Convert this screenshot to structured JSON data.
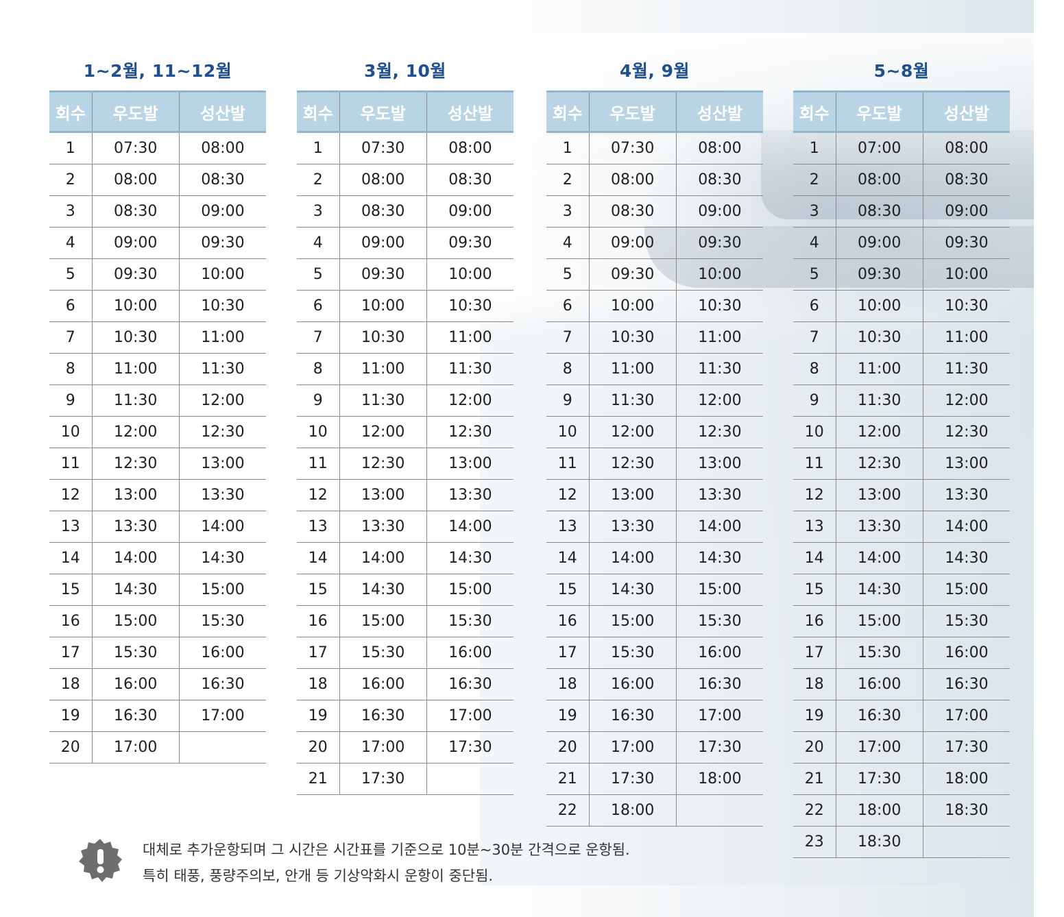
{
  "columns": [
    "회수",
    "우도발",
    "성산발"
  ],
  "schedules": [
    {
      "title": "1~2월, 11~12월",
      "rows": [
        [
          "1",
          "07:30",
          "08:00"
        ],
        [
          "2",
          "08:00",
          "08:30"
        ],
        [
          "3",
          "08:30",
          "09:00"
        ],
        [
          "4",
          "09:00",
          "09:30"
        ],
        [
          "5",
          "09:30",
          "10:00"
        ],
        [
          "6",
          "10:00",
          "10:30"
        ],
        [
          "7",
          "10:30",
          "11:00"
        ],
        [
          "8",
          "11:00",
          "11:30"
        ],
        [
          "9",
          "11:30",
          "12:00"
        ],
        [
          "10",
          "12:00",
          "12:30"
        ],
        [
          "11",
          "12:30",
          "13:00"
        ],
        [
          "12",
          "13:00",
          "13:30"
        ],
        [
          "13",
          "13:30",
          "14:00"
        ],
        [
          "14",
          "14:00",
          "14:30"
        ],
        [
          "15",
          "14:30",
          "15:00"
        ],
        [
          "16",
          "15:00",
          "15:30"
        ],
        [
          "17",
          "15:30",
          "16:00"
        ],
        [
          "18",
          "16:00",
          "16:30"
        ],
        [
          "19",
          "16:30",
          "17:00"
        ],
        [
          "20",
          "17:00",
          ""
        ]
      ]
    },
    {
      "title": "3월, 10월",
      "rows": [
        [
          "1",
          "07:30",
          "08:00"
        ],
        [
          "2",
          "08:00",
          "08:30"
        ],
        [
          "3",
          "08:30",
          "09:00"
        ],
        [
          "4",
          "09:00",
          "09:30"
        ],
        [
          "5",
          "09:30",
          "10:00"
        ],
        [
          "6",
          "10:00",
          "10:30"
        ],
        [
          "7",
          "10:30",
          "11:00"
        ],
        [
          "8",
          "11:00",
          "11:30"
        ],
        [
          "9",
          "11:30",
          "12:00"
        ],
        [
          "10",
          "12:00",
          "12:30"
        ],
        [
          "11",
          "12:30",
          "13:00"
        ],
        [
          "12",
          "13:00",
          "13:30"
        ],
        [
          "13",
          "13:30",
          "14:00"
        ],
        [
          "14",
          "14:00",
          "14:30"
        ],
        [
          "15",
          "14:30",
          "15:00"
        ],
        [
          "16",
          "15:00",
          "15:30"
        ],
        [
          "17",
          "15:30",
          "16:00"
        ],
        [
          "18",
          "16:00",
          "16:30"
        ],
        [
          "19",
          "16:30",
          "17:00"
        ],
        [
          "20",
          "17:00",
          "17:30"
        ],
        [
          "21",
          "17:30",
          ""
        ]
      ]
    },
    {
      "title": "4월, 9월",
      "rows": [
        [
          "1",
          "07:30",
          "08:00"
        ],
        [
          "2",
          "08:00",
          "08:30"
        ],
        [
          "3",
          "08:30",
          "09:00"
        ],
        [
          "4",
          "09:00",
          "09:30"
        ],
        [
          "5",
          "09:30",
          "10:00"
        ],
        [
          "6",
          "10:00",
          "10:30"
        ],
        [
          "7",
          "10:30",
          "11:00"
        ],
        [
          "8",
          "11:00",
          "11:30"
        ],
        [
          "9",
          "11:30",
          "12:00"
        ],
        [
          "10",
          "12:00",
          "12:30"
        ],
        [
          "11",
          "12:30",
          "13:00"
        ],
        [
          "12",
          "13:00",
          "13:30"
        ],
        [
          "13",
          "13:30",
          "14:00"
        ],
        [
          "14",
          "14:00",
          "14:30"
        ],
        [
          "15",
          "14:30",
          "15:00"
        ],
        [
          "16",
          "15:00",
          "15:30"
        ],
        [
          "17",
          "15:30",
          "16:00"
        ],
        [
          "18",
          "16:00",
          "16:30"
        ],
        [
          "19",
          "16:30",
          "17:00"
        ],
        [
          "20",
          "17:00",
          "17:30"
        ],
        [
          "21",
          "17:30",
          "18:00"
        ],
        [
          "22",
          "18:00",
          ""
        ]
      ]
    },
    {
      "title": "5~8월",
      "rows": [
        [
          "1",
          "07:00",
          "08:00"
        ],
        [
          "2",
          "08:00",
          "08:30"
        ],
        [
          "3",
          "08:30",
          "09:00"
        ],
        [
          "4",
          "09:00",
          "09:30"
        ],
        [
          "5",
          "09:30",
          "10:00"
        ],
        [
          "6",
          "10:00",
          "10:30"
        ],
        [
          "7",
          "10:30",
          "11:00"
        ],
        [
          "8",
          "11:00",
          "11:30"
        ],
        [
          "9",
          "11:30",
          "12:00"
        ],
        [
          "10",
          "12:00",
          "12:30"
        ],
        [
          "11",
          "12:30",
          "13:00"
        ],
        [
          "12",
          "13:00",
          "13:30"
        ],
        [
          "13",
          "13:30",
          "14:00"
        ],
        [
          "14",
          "14:00",
          "14:30"
        ],
        [
          "15",
          "14:30",
          "15:00"
        ],
        [
          "16",
          "15:00",
          "15:30"
        ],
        [
          "17",
          "15:30",
          "16:00"
        ],
        [
          "18",
          "16:00",
          "16:30"
        ],
        [
          "19",
          "16:30",
          "17:00"
        ],
        [
          "20",
          "17:00",
          "17:30"
        ],
        [
          "21",
          "17:30",
          "18:00"
        ],
        [
          "22",
          "18:00",
          "18:30"
        ],
        [
          "23",
          "18:30",
          ""
        ]
      ]
    }
  ],
  "notice": {
    "icon": "exclamation-badge-icon",
    "line1": "대체로 추가운항되며 그 시간은 시간표를 기준으로 10분~30분 간격으로 운항됨.",
    "line2": "특히 태풍, 풍량주의보, 안개 등 기상악화시 운항이 중단됨."
  },
  "colors": {
    "title": "#1f4f8e",
    "header_bg": "#b9d4e4",
    "header_border": "#8fb6cf",
    "badge": "#6e6e6e"
  }
}
